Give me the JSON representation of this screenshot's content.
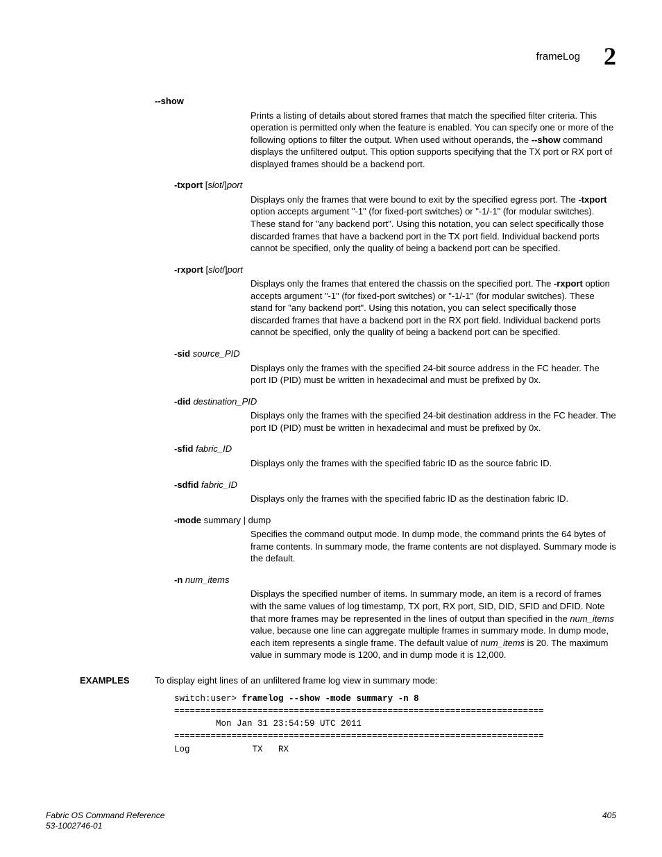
{
  "header": {
    "title": "frameLog",
    "chapter_num": "2"
  },
  "options": [
    {
      "term_html": "<b>--show</b>",
      "indent": false,
      "desc_html": "Prints a listing of details about stored frames that match the specified filter criteria. This operation is permitted only when the feature is enabled. You can specify one or more of the following options to filter the output. When used without operands, the <b>--show</b> command displays the unfiltered output. This option supports specifying that the TX port or RX port of displayed frames should be a backend port."
    },
    {
      "term_html": "<b>-txport</b> [<i>slot</i>/]<i>port</i>",
      "indent": true,
      "desc_html": "Displays only the frames that were bound to exit by the specified egress port. The <b>-txport</b> option accepts argument \"-1\" (for fixed-port switches) or \"-1/-1\" (for modular switches). These stand for \"any backend port\". Using this notation, you can select specifically those discarded frames that have a backend port in the TX port field. Individual backend ports cannot be specified, only the quality of being a backend port can be specified."
    },
    {
      "term_html": "<b>-rxport</b> [<i>slot</i>/]<i>port</i>",
      "indent": true,
      "desc_html": "Displays only the frames that entered the chassis on the specified port. The <b>-rxport</b> option accepts argument \"-1\" (for fixed-port switches) or \"-1/-1\" (for modular switches). These stand for \"any backend port\". Using this notation, you can select specifically those discarded frames that have a backend port in the RX port field. Individual backend ports cannot be specified, only the quality of being a backend port can be specified."
    },
    {
      "term_html": "<b>-sid</b> <i>source_PID</i>",
      "indent": true,
      "desc_html": "Displays only the frames with the specified 24-bit source address in the FC header. The port ID (PID) must be written in hexadecimal and must be prefixed by 0x."
    },
    {
      "term_html": "<b>-did</b> <i>destination_PID</i>",
      "indent": true,
      "desc_html": "Displays only the frames with the specified 24-bit destination address in the FC header. The port ID (PID) must be written in hexadecimal and must be prefixed by 0x."
    },
    {
      "term_html": "<b>-sfid</b> <i>fabric_ID</i>",
      "indent": true,
      "desc_html": "Displays only the frames with the specified fabric ID as the source fabric ID."
    },
    {
      "term_html": "<b>-sdfid</b> <i>fabric_ID</i>",
      "indent": true,
      "desc_html": "Displays only the frames with the specified fabric ID as the destination fabric ID."
    },
    {
      "term_html": "<b>-mode</b> summary | dump",
      "indent": true,
      "desc_html": "Specifies the command output mode. In dump mode, the command prints the 64 bytes of frame contents. In summary mode, the frame contents are not displayed. Summary mode is the default."
    },
    {
      "term_html": "<b>-n</b> <i>num_items</i>",
      "indent": true,
      "desc_html": "Displays the specified number of items. In summary mode, an item is a record of frames with the same values of log timestamp, TX port, RX port, SID, DID, SFID and DFID. Note that more frames may be represented in the lines of output than specified in the <i>num_items</i> value, because one line can aggregate multiple frames in summary mode. In dump mode, each item represents a single frame. The default value of <i>num_items</i> is 20. The maximum value in summary mode is 1200, and in dump mode it is 12,000."
    }
  ],
  "examples": {
    "label": "EXAMPLES",
    "intro": "To display eight lines of an unfiltered frame log view in summary mode:",
    "code_prefix": "switch:user> ",
    "code_cmd": "framelog --show -mode summary -n 8",
    "code_lines": [
      "=======================================================================",
      "        Mon Jan 31 23:54:59 UTC 2011",
      "=======================================================================",
      "Log            TX   RX"
    ]
  },
  "footer": {
    "left_line1": "Fabric OS Command Reference",
    "left_line2": "53-1002746-01",
    "page_num": "405"
  }
}
